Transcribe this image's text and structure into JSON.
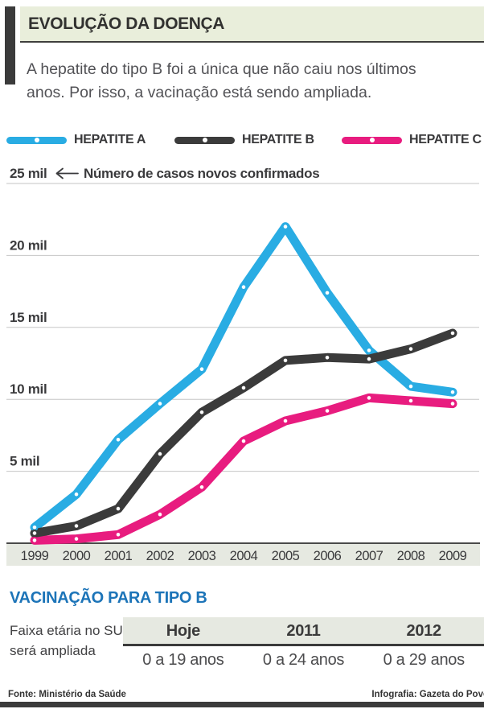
{
  "header": {
    "title": "EVOLUÇÃO DA DOENÇA",
    "subtitle_lines": [
      "A hepatite do tipo B foi a única que não caiu nos últimos",
      "anos. Por isso, a vacinação está sendo ampliada."
    ]
  },
  "chart_data": {
    "type": "line",
    "axis_note": "Número de casos novos confirmados",
    "x": [
      1999,
      2000,
      2001,
      2002,
      2003,
      2004,
      2005,
      2006,
      2007,
      2008,
      2009
    ],
    "ylim": [
      0,
      25000
    ],
    "yticks": [
      {
        "label": "25 mil",
        "value": 25000
      },
      {
        "label": "20 mil",
        "value": 20000
      },
      {
        "label": "15 mil",
        "value": 15000
      },
      {
        "label": "10 mil",
        "value": 10000
      },
      {
        "label": "5 mil",
        "value": 5000
      }
    ],
    "series": [
      {
        "name": "HEPATITE A",
        "color": "#29ace3",
        "values": [
          1100,
          3400,
          7200,
          9700,
          12100,
          17800,
          22000,
          17400,
          13400,
          10900,
          10500
        ]
      },
      {
        "name": "HEPATITE B",
        "color": "#3b3b3b",
        "values": [
          700,
          1200,
          2400,
          6200,
          9100,
          10800,
          12700,
          12900,
          12800,
          13500,
          14600
        ]
      },
      {
        "name": "HEPATITE C",
        "color": "#e81c7f",
        "values": [
          200,
          300,
          600,
          2000,
          3900,
          7100,
          8500,
          9200,
          10100,
          9900,
          9700
        ]
      }
    ],
    "legend_position": "top",
    "grid": true
  },
  "vaccination": {
    "heading": "VACINAÇÃO PARA TIPO B",
    "note_lines": [
      "Faixa etária no SUS",
      "será ampliada"
    ],
    "columns": [
      {
        "header": "Hoje",
        "value": "0 a 19 anos"
      },
      {
        "header": "2011",
        "value": "0 a 24 anos"
      },
      {
        "header": "2012",
        "value": "0 a 29 anos"
      }
    ]
  },
  "footer": {
    "source": "Fonte: Ministério da Saúde",
    "credit": "Infografia: Gazeta do Povo"
  },
  "colors": {
    "header_band": "#e9eedb",
    "gray_band": "#e6e9e1",
    "grid_line": "#c6c6c6",
    "baseline": "#4a4a4a",
    "heading_blue": "#1c74b8",
    "dark_bar": "#3b3b3b"
  }
}
